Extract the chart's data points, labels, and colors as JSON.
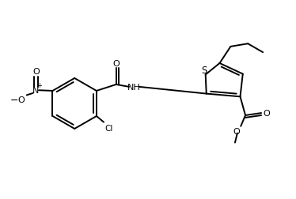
{
  "bg_color": "#ffffff",
  "line_color": "#000000",
  "lw": 1.4,
  "fig_width": 3.74,
  "fig_height": 2.53,
  "dpi": 100,
  "xlim": [
    0,
    10
  ],
  "ylim": [
    0,
    6.8
  ]
}
